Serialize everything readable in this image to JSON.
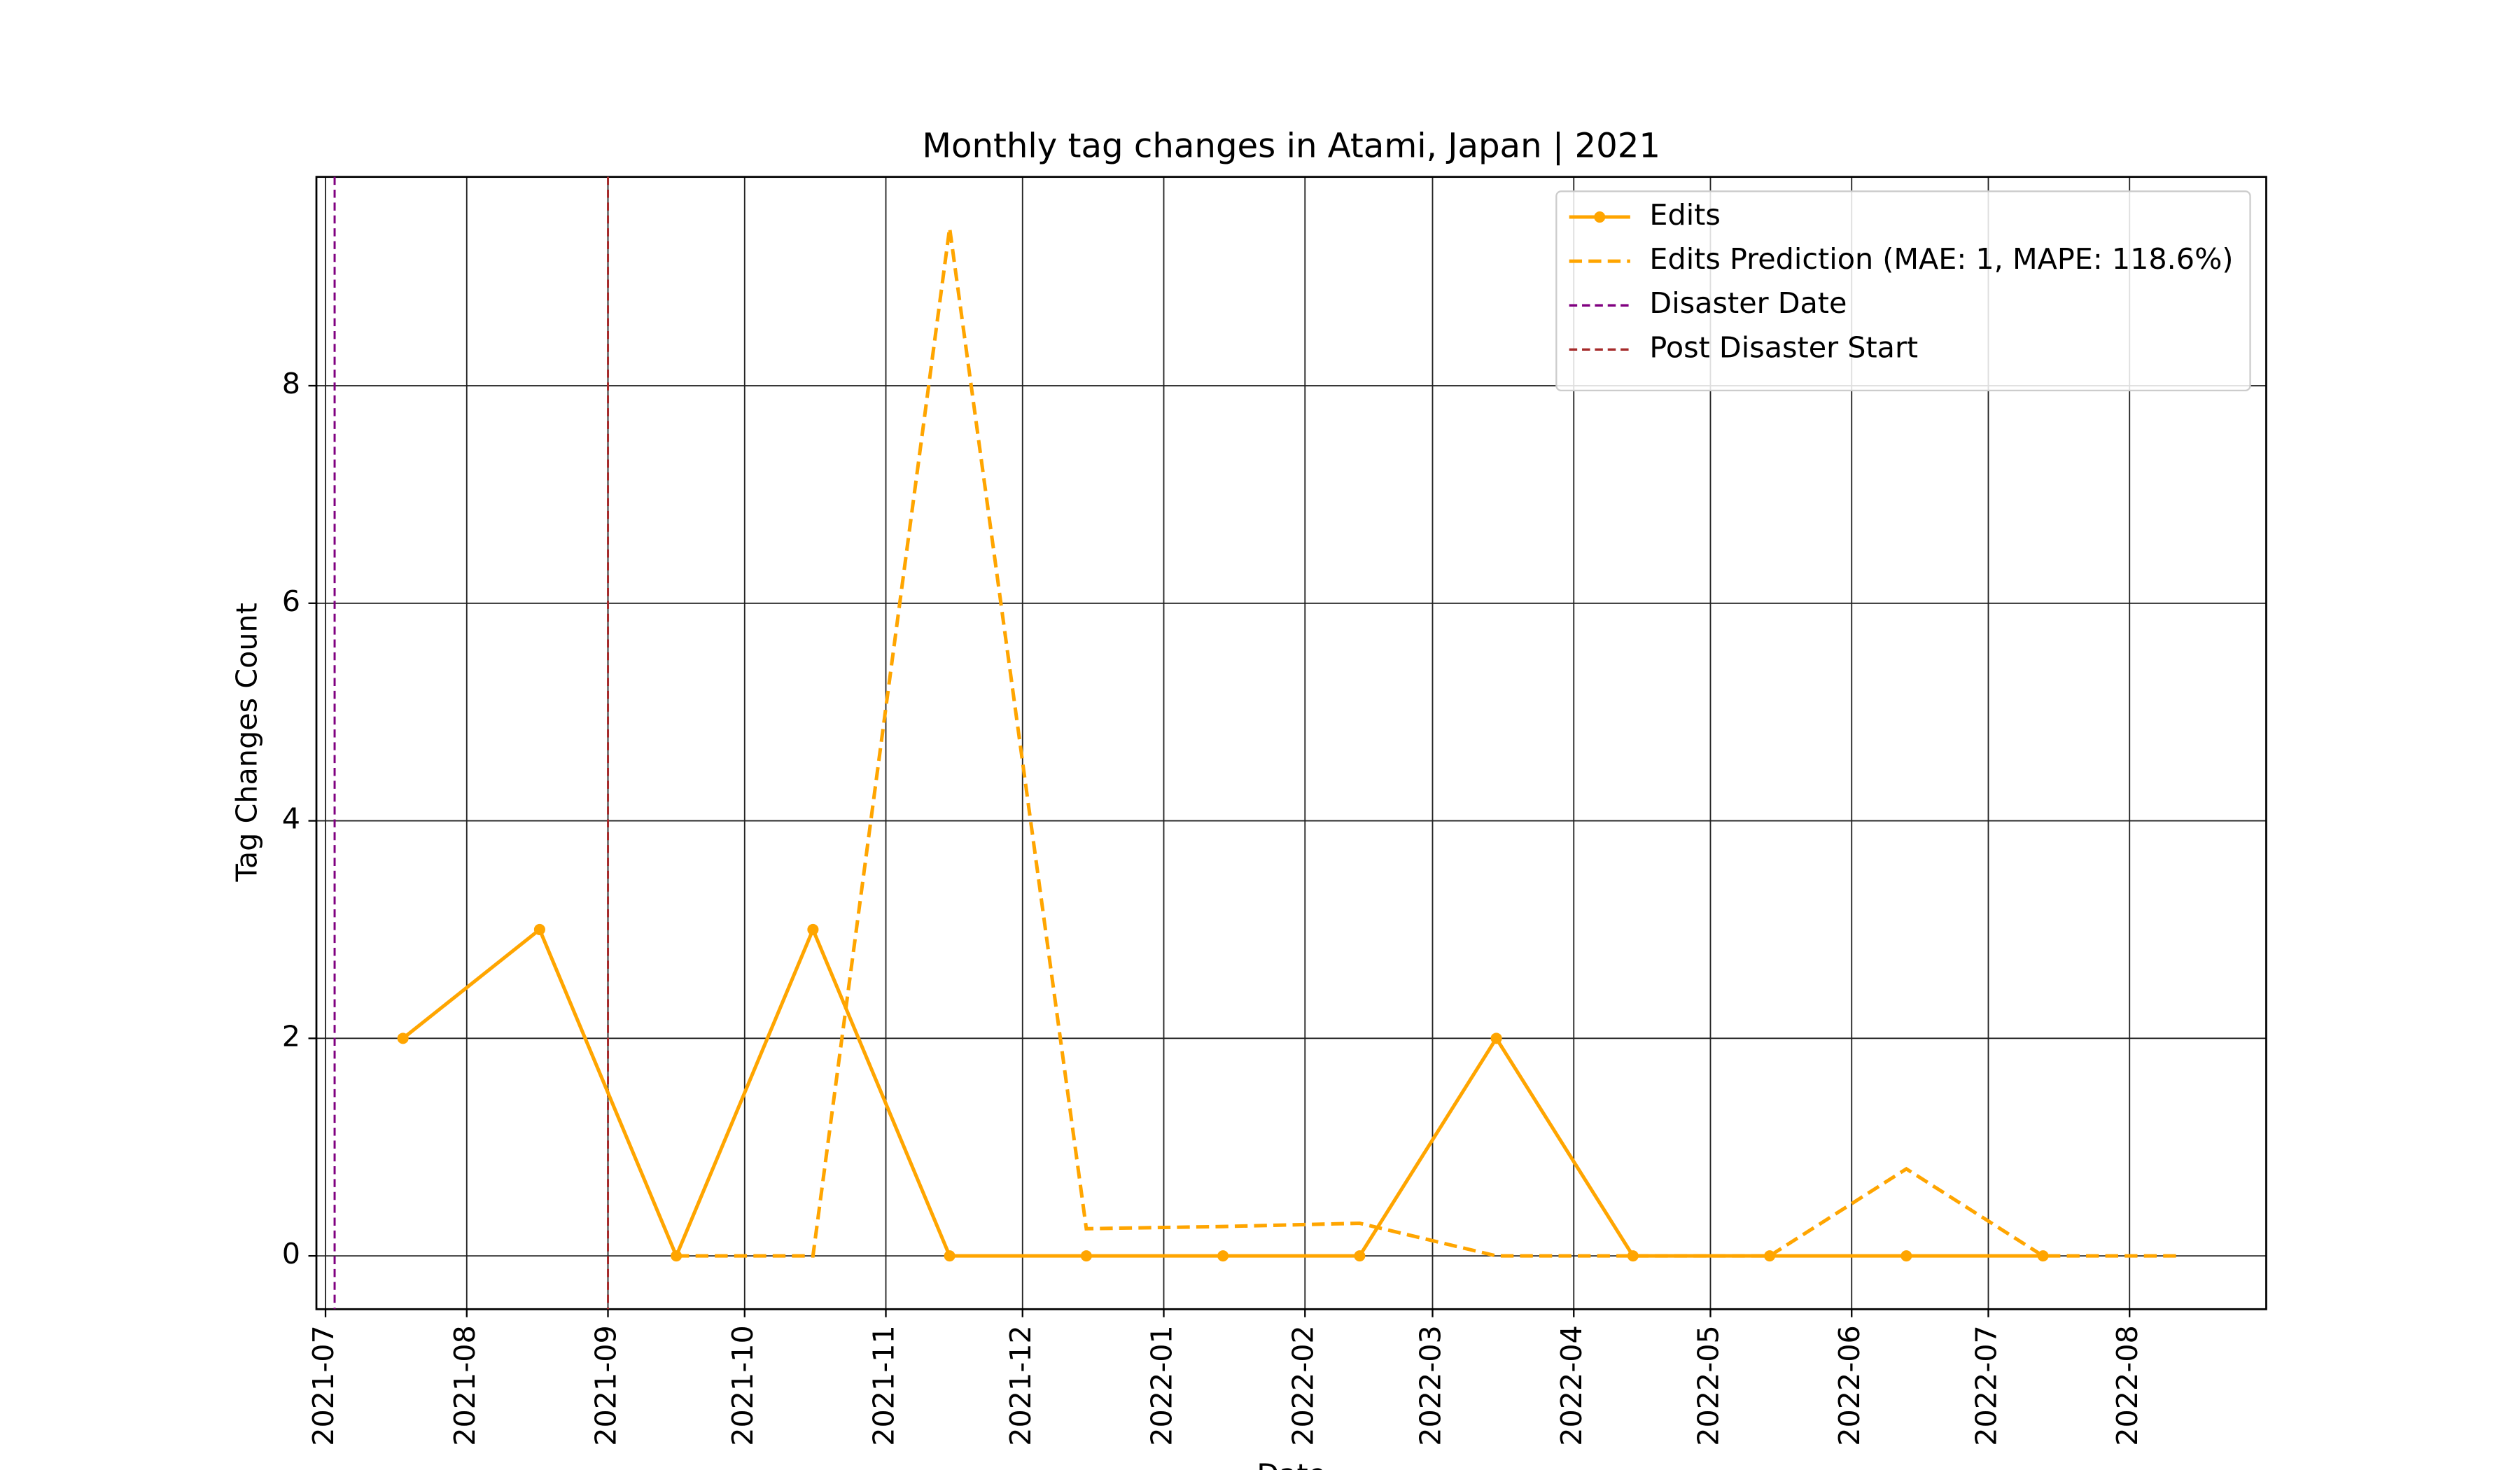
{
  "chart_data": {
    "type": "line",
    "title": "Monthly tag changes in Atami, Japan | 2021",
    "x_label": "Date",
    "y_label": "Tag Changes Count",
    "x": [
      "2021-07-18",
      "2021-08-17",
      "2021-09-16",
      "2021-10-16",
      "2021-11-15",
      "2021-12-15",
      "2022-01-14",
      "2022-02-13",
      "2022-03-15",
      "2022-04-14",
      "2022-05-14",
      "2022-06-13",
      "2022-07-13",
      "2022-08-12"
    ],
    "series": [
      {
        "name": "Edits",
        "color": "#ffa500",
        "style": "solid",
        "markers": true,
        "values": [
          2,
          3,
          0,
          3,
          0,
          0,
          0,
          0,
          2,
          0,
          0,
          0,
          0,
          null
        ]
      },
      {
        "name": "Edits Prediction (MAE: 1, MAPE: 118.6%)",
        "color": "#ffa500",
        "style": "dashed",
        "markers": false,
        "values": [
          null,
          null,
          0,
          0,
          9.45,
          0.25,
          0.27,
          0.3,
          0,
          0,
          0,
          0.8,
          0,
          0
        ]
      }
    ],
    "vlines": [
      {
        "name": "Disaster Date",
        "color": "#800080",
        "x": "2021-07-03"
      },
      {
        "name": "Post Disaster Start",
        "color": "#a52a2a",
        "x": "2021-09-01"
      }
    ],
    "xlim": [
      "2021-06-29",
      "2022-08-31"
    ],
    "xticks": [
      "2021-07",
      "2021-08",
      "2021-09",
      "2021-10",
      "2021-11",
      "2021-12",
      "2022-01",
      "2022-02",
      "2022-03",
      "2022-04",
      "2022-05",
      "2022-06",
      "2022-07",
      "2022-08"
    ],
    "ylim": [
      -0.49,
      9.92
    ],
    "yticks": [
      0,
      2,
      4,
      6,
      8
    ],
    "grid": true,
    "legend": "upper right"
  }
}
